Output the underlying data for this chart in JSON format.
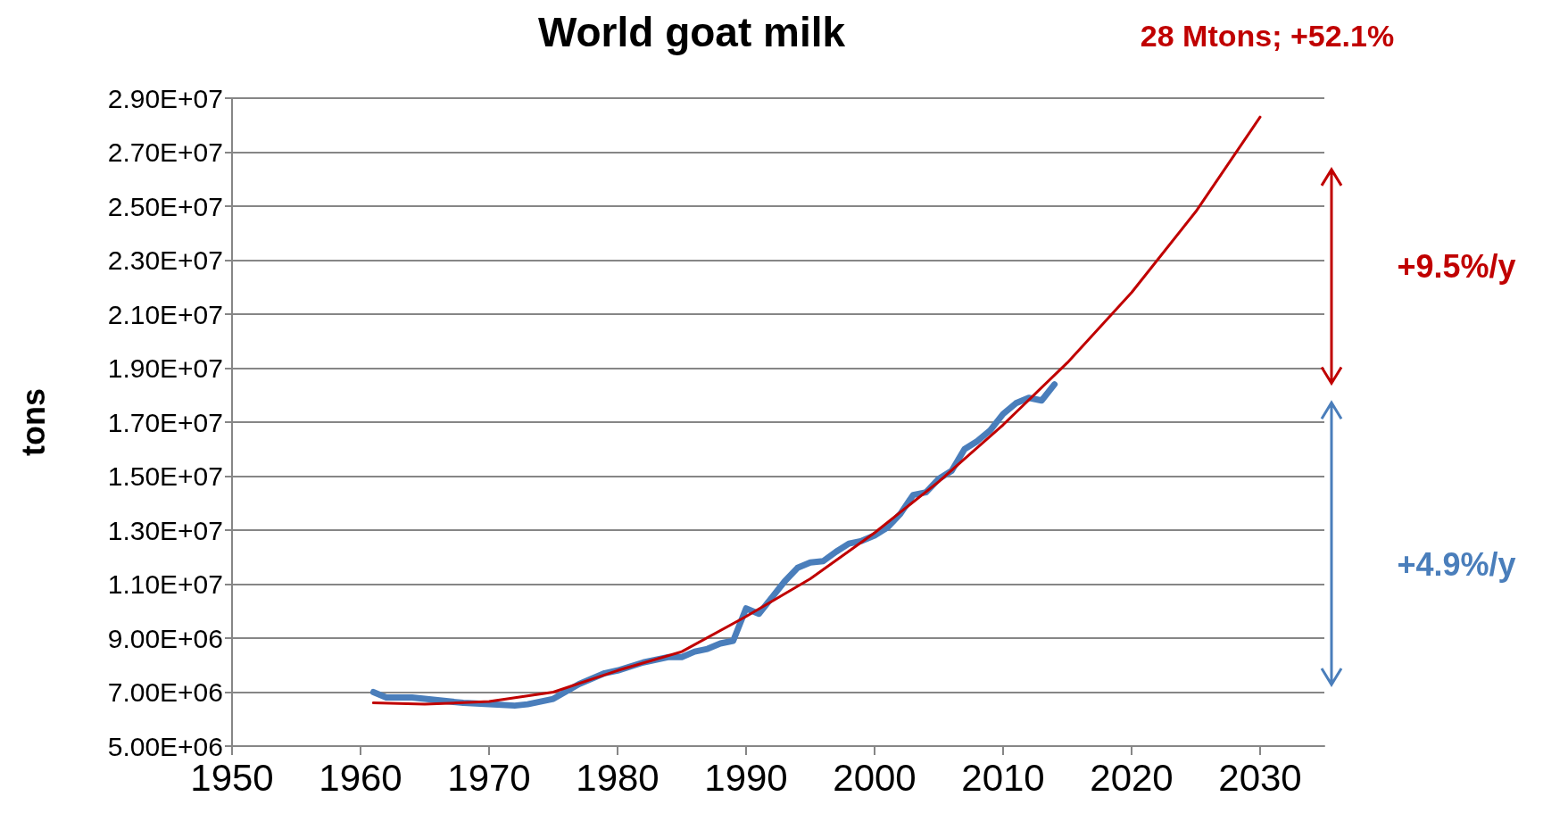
{
  "chart_data": {
    "type": "line",
    "title": "World goat milk",
    "ylabel": "tons",
    "xlim": [
      1950,
      2035
    ],
    "xticks": [
      1950,
      1960,
      1970,
      1980,
      1990,
      2000,
      2010,
      2020,
      2030
    ],
    "ylim": [
      5000000,
      29000000
    ],
    "yticks": [
      {
        "value": 5000000,
        "label": "5.00E+06"
      },
      {
        "value": 7000000,
        "label": "7.00E+06"
      },
      {
        "value": 9000000,
        "label": "9.00E+06"
      },
      {
        "value": 11000000,
        "label": "1.10E+07"
      },
      {
        "value": 13000000,
        "label": "1.30E+07"
      },
      {
        "value": 15000000,
        "label": "1.50E+07"
      },
      {
        "value": 17000000,
        "label": "1.70E+07"
      },
      {
        "value": 19000000,
        "label": "1.90E+07"
      },
      {
        "value": 21000000,
        "label": "2.10E+07"
      },
      {
        "value": 23000000,
        "label": "2.30E+07"
      },
      {
        "value": 25000000,
        "label": "2.50E+07"
      },
      {
        "value": 27000000,
        "label": "2.70E+07"
      },
      {
        "value": 29000000,
        "label": "2.90E+07"
      }
    ],
    "grid": "y",
    "legend": false,
    "marker": "none",
    "line_style": "solid",
    "series": [
      {
        "color": "#4a7ebb",
        "x": [
          1961,
          1962,
          1964,
          1966,
          1968,
          1970,
          1972,
          1973,
          1975,
          1977,
          1979,
          1980,
          1982,
          1984,
          1985,
          1986,
          1987,
          1988,
          1989,
          1990,
          1991,
          1992,
          1993,
          1994,
          1995,
          1996,
          1997,
          1998,
          1999,
          2000,
          2001,
          2002,
          2003,
          2004,
          2005,
          2006,
          2007,
          2008,
          2009,
          2010,
          2011,
          2012,
          2013,
          2014
        ],
        "values": [
          7000000,
          6800000,
          6800000,
          6700000,
          6600000,
          6550000,
          6500000,
          6550000,
          6750000,
          7300000,
          7700000,
          7800000,
          8100000,
          8300000,
          8300000,
          8500000,
          8600000,
          8800000,
          8900000,
          10100000,
          9900000,
          10500000,
          11100000,
          11600000,
          11800000,
          11850000,
          12200000,
          12500000,
          12600000,
          12800000,
          13100000,
          13600000,
          14300000,
          14400000,
          14900000,
          15200000,
          16000000,
          16300000,
          16700000,
          17300000,
          17700000,
          17900000,
          17800000,
          18400000
        ]
      },
      {
        "type": "line",
        "color": "#c00000",
        "x": [
          1961,
          1965,
          1970,
          1975,
          1980,
          1985,
          1990,
          1995,
          2000,
          2005,
          2010,
          2015,
          2020,
          2025,
          2030
        ],
        "values": [
          6600000,
          6550000,
          6650000,
          7000000,
          7800000,
          8500000,
          9800000,
          11200000,
          12900000,
          14800000,
          16900000,
          19200000,
          21800000,
          24800000,
          28300000
        ]
      }
    ],
    "annotations": [
      "28 Mtons; +52.1%",
      "+9.5%/y",
      "+4.9%/y"
    ]
  }
}
